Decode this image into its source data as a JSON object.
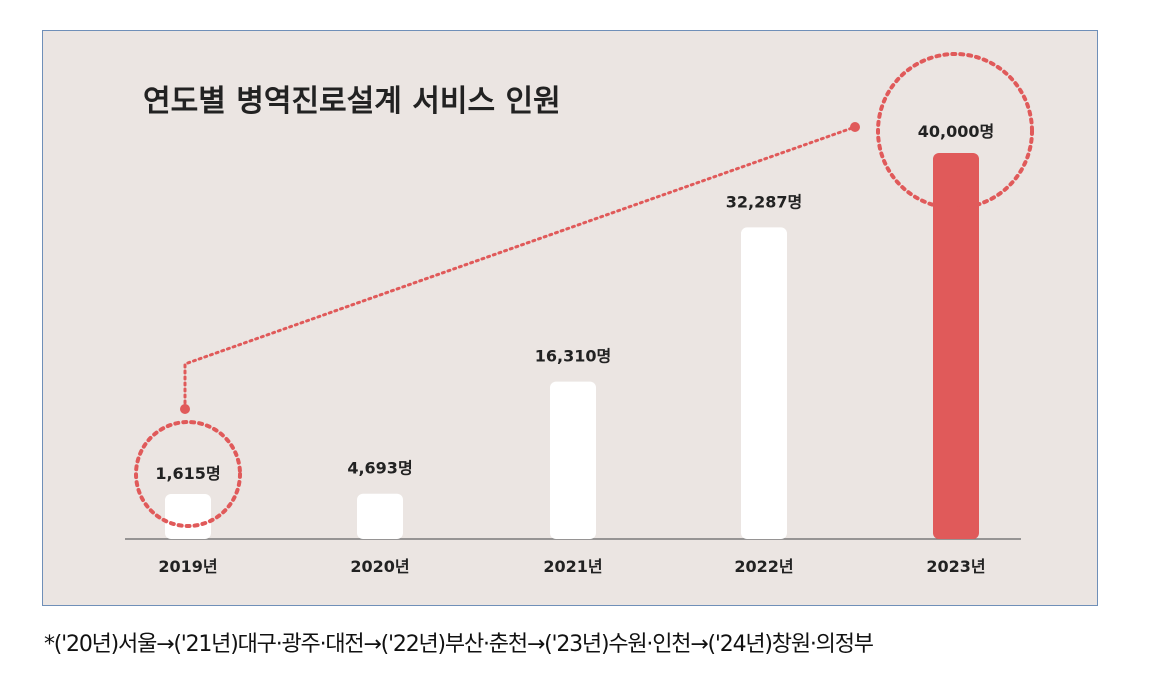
{
  "chart_data": {
    "type": "bar",
    "title": "연도별 병역진로설계 서비스 인원",
    "categories": [
      "2019년",
      "2020년",
      "2021년",
      "2022년",
      "2023년"
    ],
    "values": [
      1615,
      4693,
      16310,
      32287,
      40000
    ],
    "value_labels": [
      "1,615명",
      "4,693명",
      "16,310명",
      "32,287명",
      "40,000명"
    ],
    "ylim": [
      0,
      40000
    ],
    "grid": false,
    "highlight_index": 4,
    "annotation": "dotted connector from 2019 to 2023 with dotted circles around both values",
    "colors": {
      "bar": "#ffffff",
      "highlight": "#e05a5a",
      "accent": "#e05a5a",
      "background": "#ebe5e2",
      "axis": "#7a7a7a"
    }
  },
  "footnote": "*('20년)서울→('21년)대구·광주·대전→('22년)부산·춘천→('23년)수원·인천→('24년)창원·의정부"
}
